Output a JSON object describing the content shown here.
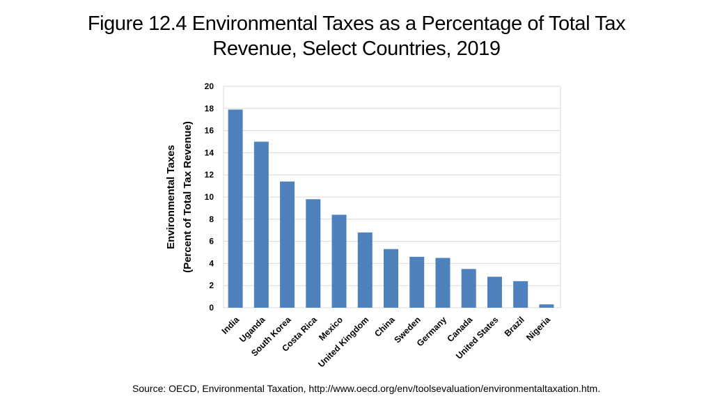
{
  "title": {
    "line1": "Figure 12.4 Environmental Taxes as a Percentage of Total Tax",
    "line2": "Revenue, Select Countries, 2019"
  },
  "source": "Source: OECD, Environmental Taxation, http://www.oecd.org/env/toolsevaluation/environmentaltaxation.htm.",
  "chart_data": {
    "type": "bar",
    "title": "Figure 12.4 Environmental Taxes as a Percentage of Total Tax Revenue, Select Countries, 2019",
    "xlabel": "",
    "ylabel_lines": [
      "Environmental Taxes",
      "(Percent of Total Tax Revenue)"
    ],
    "categories": [
      "India",
      "Uganda",
      "South Korea",
      "Costa Rica",
      "Mexico",
      "United Kingdom",
      "China",
      "Sweden",
      "Germany",
      "Canada",
      "United States",
      "Brazil",
      "Nigeria"
    ],
    "values": [
      17.9,
      15.0,
      11.4,
      9.8,
      8.4,
      6.8,
      5.3,
      4.6,
      4.5,
      3.5,
      2.8,
      2.4,
      0.3
    ],
    "ylim": [
      0,
      20
    ],
    "yticks": [
      0,
      2,
      4,
      6,
      8,
      10,
      12,
      14,
      16,
      18,
      20
    ],
    "grid": true,
    "bar_color": "#4f81bd",
    "grid_color": "#d9d9d9"
  }
}
